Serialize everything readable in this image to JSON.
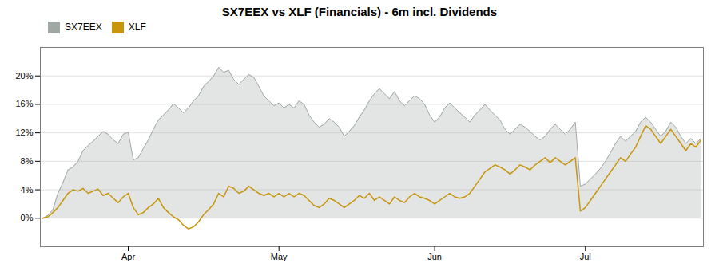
{
  "chart_data": {
    "type": "line",
    "title": "SX7EEX vs XLF (Financials) - 6m incl. Dividends",
    "categories": [
      null,
      null,
      null,
      null,
      null,
      null,
      null,
      null,
      null,
      null,
      null,
      null,
      null,
      null,
      null,
      null,
      null,
      "Apr",
      null,
      null,
      null,
      null,
      null,
      null,
      null,
      null,
      null,
      null,
      null,
      null,
      null,
      null,
      null,
      null,
      null,
      null,
      null,
      null,
      null,
      null,
      null,
      null,
      null,
      null,
      null,
      null,
      null,
      "May",
      null,
      null,
      null,
      null,
      null,
      null,
      null,
      null,
      null,
      null,
      null,
      null,
      null,
      null,
      null,
      null,
      null,
      null,
      null,
      null,
      null,
      null,
      null,
      null,
      null,
      null,
      null,
      null,
      null,
      null,
      "Jun",
      null,
      null,
      null,
      null,
      null,
      null,
      null,
      null,
      null,
      null,
      null,
      null,
      null,
      null,
      null,
      null,
      null,
      null,
      null,
      null,
      null,
      null,
      null,
      null,
      null,
      null,
      null,
      null,
      null,
      "Jul",
      null,
      null,
      null,
      null,
      null,
      null,
      null,
      null,
      null,
      null,
      null,
      null,
      null,
      null,
      null,
      null,
      null,
      null,
      null,
      null,
      null,
      null,
      null
    ],
    "series": [
      {
        "name": "SX7EEX",
        "type": "area",
        "color": "#a0a8a4",
        "values": [
          0.0,
          0.4,
          1.2,
          3.5,
          5.0,
          6.8,
          7.2,
          8.0,
          9.5,
          10.2,
          10.8,
          11.5,
          12.2,
          11.8,
          11.0,
          10.5,
          11.8,
          12.1,
          8.2,
          8.5,
          9.8,
          11.0,
          12.5,
          13.8,
          14.5,
          15.2,
          16.1,
          15.5,
          14.8,
          15.5,
          16.5,
          17.2,
          18.5,
          19.2,
          20.0,
          21.2,
          20.5,
          20.8,
          19.5,
          18.8,
          19.5,
          20.2,
          19.8,
          18.5,
          17.2,
          16.5,
          15.8,
          16.2,
          15.5,
          16.0,
          15.5,
          16.5,
          16.0,
          14.5,
          13.5,
          12.8,
          13.2,
          14.0,
          13.5,
          12.8,
          11.5,
          12.2,
          13.0,
          14.2,
          15.2,
          16.5,
          17.5,
          18.2,
          17.5,
          16.8,
          17.8,
          16.5,
          15.8,
          16.5,
          17.2,
          16.8,
          16.0,
          14.5,
          13.5,
          14.2,
          15.5,
          16.2,
          15.5,
          14.8,
          14.2,
          13.5,
          14.5,
          15.2,
          16.0,
          15.2,
          14.5,
          13.8,
          12.5,
          11.8,
          12.5,
          13.2,
          12.8,
          12.2,
          11.5,
          11.0,
          11.5,
          12.5,
          13.2,
          12.5,
          11.8,
          12.5,
          13.5,
          4.5,
          4.8,
          5.5,
          6.2,
          7.0,
          8.0,
          9.2,
          10.5,
          11.5,
          10.8,
          11.5,
          12.2,
          13.5,
          14.2,
          13.5,
          12.5,
          11.5,
          12.2,
          13.5,
          12.8,
          11.5,
          10.5,
          11.2,
          10.5,
          11.2
        ]
      },
      {
        "name": "XLF",
        "type": "line",
        "color": "#c8960c",
        "values": [
          0.0,
          0.2,
          0.8,
          1.5,
          2.5,
          3.5,
          4.0,
          3.8,
          4.2,
          3.5,
          3.8,
          4.1,
          3.2,
          3.5,
          2.8,
          2.2,
          3.0,
          3.5,
          1.5,
          0.5,
          0.8,
          1.5,
          2.0,
          2.8,
          1.5,
          0.8,
          0.2,
          -0.2,
          -1.0,
          -1.5,
          -1.2,
          -0.5,
          0.5,
          1.2,
          2.0,
          3.5,
          3.0,
          4.5,
          4.2,
          3.5,
          3.8,
          4.5,
          4.0,
          3.5,
          3.2,
          3.5,
          3.0,
          3.5,
          3.0,
          3.5,
          3.0,
          3.5,
          3.2,
          2.5,
          1.8,
          1.5,
          2.0,
          2.8,
          2.5,
          2.0,
          1.5,
          2.0,
          2.5,
          3.2,
          2.8,
          3.5,
          2.5,
          3.0,
          2.5,
          2.0,
          3.0,
          2.5,
          2.2,
          3.0,
          3.5,
          3.0,
          2.8,
          2.5,
          2.0,
          2.5,
          3.0,
          3.5,
          3.0,
          2.8,
          3.0,
          3.5,
          4.5,
          5.5,
          6.5,
          7.0,
          7.5,
          7.2,
          6.8,
          6.2,
          6.8,
          7.5,
          7.2,
          6.8,
          7.5,
          8.0,
          8.5,
          7.8,
          8.5,
          8.0,
          7.5,
          8.0,
          8.5,
          1.0,
          1.5,
          2.5,
          3.5,
          4.5,
          5.5,
          6.5,
          7.5,
          8.5,
          8.0,
          9.0,
          10.0,
          11.5,
          13.0,
          12.5,
          11.5,
          10.5,
          11.5,
          12.5,
          11.5,
          10.5,
          9.5,
          10.5,
          10.0,
          11.0
        ]
      }
    ],
    "ylim": [
      -4,
      24
    ],
    "yticks": [
      {
        "value": 0,
        "label": "0%"
      },
      {
        "value": 4,
        "label": "4%"
      },
      {
        "value": 8,
        "label": "8%"
      },
      {
        "value": 12,
        "label": "12%"
      },
      {
        "value": 16,
        "label": "16%"
      },
      {
        "value": 20,
        "label": "20%"
      }
    ],
    "grid": true,
    "legend": "upper left"
  }
}
